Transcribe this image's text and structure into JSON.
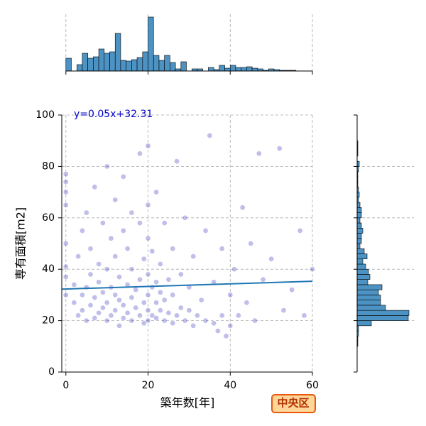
{
  "badge": "中央区",
  "chart_data": [
    {
      "type": "scatter",
      "xlabel": "築年数[年]",
      "ylabel": "専有面積[m2]",
      "annotation": "y=0.05x+32.31",
      "xlim": [
        -1,
        60
      ],
      "ylim": [
        0,
        100
      ],
      "xticks": [
        0,
        20,
        40,
        60
      ],
      "yticks": [
        0,
        20,
        40,
        60,
        80,
        100
      ],
      "grid": true,
      "color": "#2b2bb8",
      "regression": {
        "slope": 0.05,
        "intercept": 32.31,
        "color": "#1f77b4"
      },
      "x": [
        0,
        0,
        0,
        0,
        0,
        0,
        0,
        0,
        2,
        2,
        3,
        3,
        4,
        4,
        4,
        5,
        5,
        5,
        6,
        6,
        6,
        7,
        7,
        7,
        8,
        8,
        8,
        9,
        9,
        9,
        10,
        10,
        10,
        10,
        11,
        11,
        11,
        12,
        12,
        12,
        12,
        13,
        13,
        13,
        14,
        14,
        14,
        14,
        15,
        15,
        15,
        16,
        16,
        16,
        16,
        17,
        17,
        18,
        18,
        18,
        18,
        19,
        19,
        19,
        20,
        20,
        20,
        20,
        20,
        20,
        20,
        21,
        21,
        21,
        22,
        22,
        22,
        22,
        23,
        23,
        23,
        24,
        24,
        24,
        25,
        25,
        26,
        26,
        26,
        27,
        27,
        28,
        28,
        29,
        29,
        30,
        30,
        31,
        31,
        32,
        33,
        34,
        34,
        35,
        36,
        36,
        37,
        38,
        38,
        39,
        40,
        40,
        41,
        42,
        43,
        44,
        45,
        46,
        47,
        48,
        50,
        52,
        53,
        55,
        57,
        58,
        60
      ],
      "y": [
        30,
        37,
        41,
        50,
        65,
        70,
        74,
        77,
        27,
        34,
        22,
        45,
        24,
        30,
        55,
        20,
        33,
        62,
        26,
        38,
        48,
        21,
        29,
        72,
        23,
        35,
        42,
        25,
        31,
        58,
        20,
        27,
        40,
        80,
        22,
        33,
        52,
        24,
        30,
        45,
        67,
        18,
        28,
        37,
        21,
        26,
        55,
        76,
        23,
        34,
        48,
        20,
        29,
        40,
        62,
        25,
        32,
        22,
        36,
        58,
        85,
        19,
        27,
        44,
        20,
        24,
        30,
        38,
        52,
        65,
        88,
        22,
        33,
        47,
        21,
        27,
        35,
        70,
        24,
        31,
        42,
        20,
        28,
        58,
        23,
        36,
        19,
        30,
        48,
        22,
        82,
        25,
        38,
        20,
        60,
        24,
        33,
        18,
        45,
        22,
        28,
        20,
        55,
        92,
        19,
        35,
        16,
        22,
        48,
        14,
        18,
        30,
        40,
        22,
        64,
        27,
        50,
        20,
        85,
        36,
        44,
        87,
        24,
        32,
        55,
        22,
        40
      ]
    },
    {
      "type": "histogram",
      "orientation": "vertical",
      "color": "#4c92c3",
      "ylim": [
        0,
        80
      ],
      "xticks": [
        0,
        20,
        40,
        60
      ],
      "bins": [
        0,
        1.33,
        2.67,
        4,
        5.33,
        6.67,
        8,
        9.33,
        10.67,
        12,
        13.33,
        14.67,
        16,
        17.33,
        18.67,
        20,
        21.33,
        22.67,
        24,
        25.33,
        26.67,
        28,
        29.33,
        30.67,
        32,
        33.33,
        34.67,
        36,
        37.33,
        38.67,
        40,
        41.33,
        42.67,
        44,
        45.33,
        46.67,
        48,
        49.33,
        50.67,
        52,
        53.33,
        54.67,
        56,
        57.33,
        58.67,
        60
      ],
      "values": [
        18,
        0,
        9,
        25,
        18,
        20,
        31,
        25,
        27,
        53,
        15,
        14,
        16,
        19,
        27,
        76,
        22,
        15,
        22,
        12,
        3,
        13,
        0,
        3,
        3,
        0,
        5,
        2,
        8,
        4,
        8,
        5,
        5,
        6,
        4,
        3,
        1,
        3,
        2,
        1,
        1,
        1,
        0,
        0,
        0
      ]
    },
    {
      "type": "histogram",
      "orientation": "horizontal",
      "color": "#4c92c3",
      "xlim": [
        0,
        80
      ],
      "yticks": [
        20,
        40,
        60,
        80
      ],
      "bins": [
        0,
        2,
        4,
        6,
        8,
        10,
        12,
        14,
        16,
        18,
        20,
        22,
        24,
        26,
        28,
        30,
        32,
        34,
        36,
        38,
        40,
        42,
        44,
        46,
        48,
        50,
        52,
        54,
        56,
        58,
        60,
        62,
        64,
        66,
        68,
        70,
        72,
        74,
        76,
        78,
        80,
        82,
        84,
        86,
        88,
        90,
        92,
        94,
        96,
        98,
        100
      ],
      "values": [
        0,
        0,
        0,
        0,
        0,
        1,
        1,
        2,
        2,
        20,
        72,
        73,
        40,
        33,
        33,
        30,
        35,
        15,
        18,
        16,
        12,
        8,
        14,
        10,
        4,
        6,
        6,
        8,
        6,
        4,
        6,
        6,
        4,
        2,
        3,
        2,
        1,
        1,
        1,
        2,
        3,
        0,
        1,
        1,
        1,
        0,
        0,
        0,
        0,
        0
      ]
    }
  ]
}
